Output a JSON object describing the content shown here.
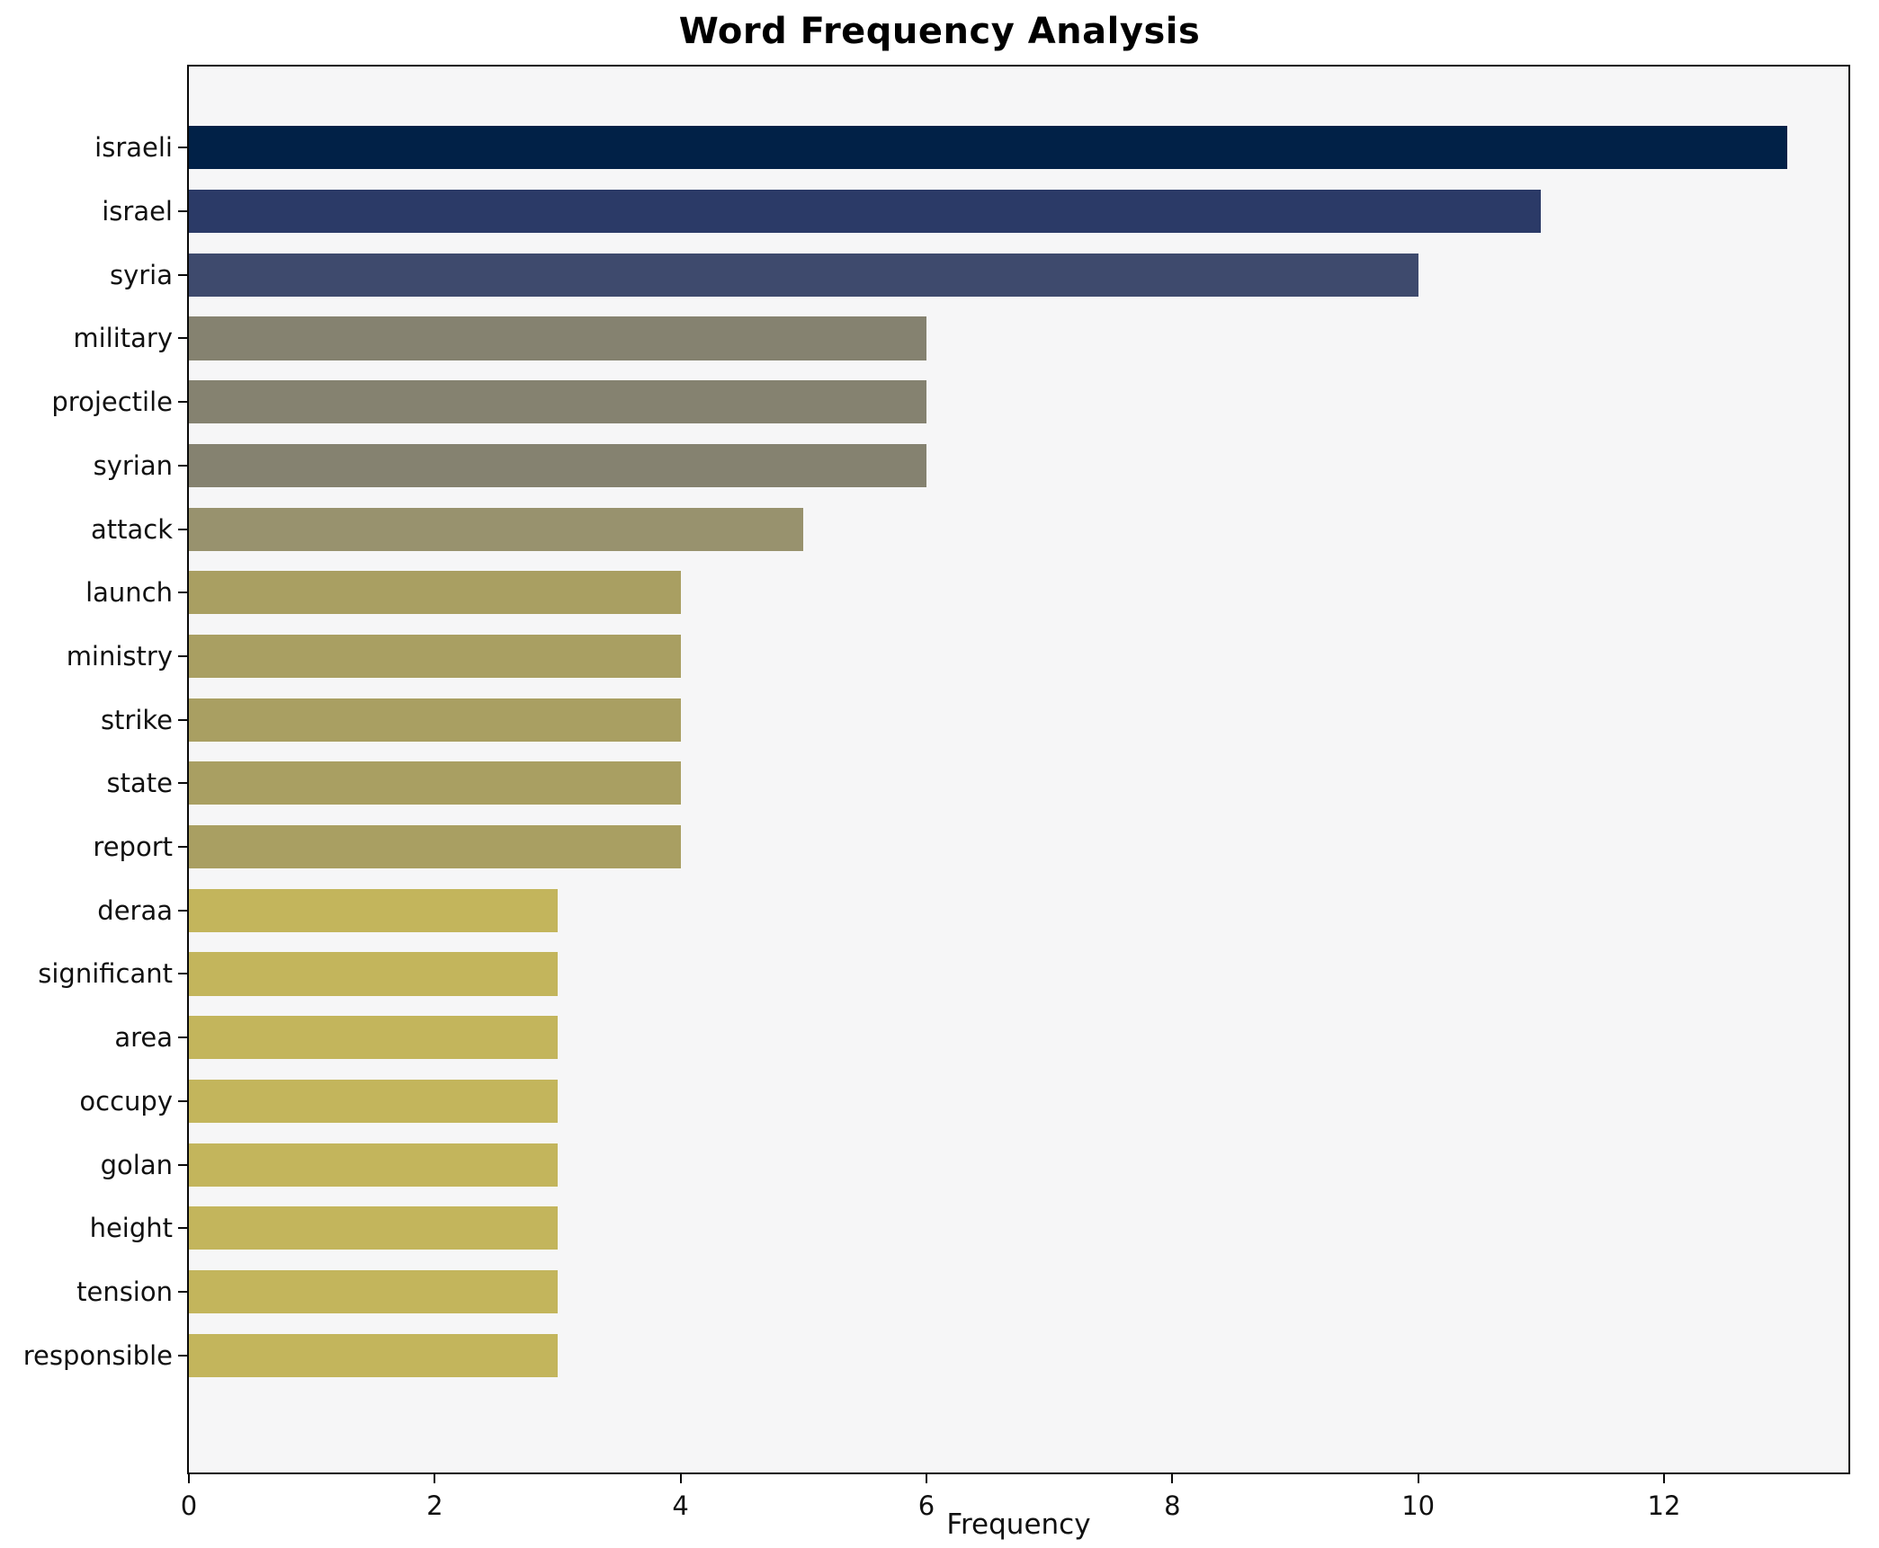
{
  "chart_data": {
    "type": "bar",
    "orientation": "horizontal",
    "title": "Word Frequency Analysis",
    "xlabel": "Frequency",
    "ylabel": "",
    "categories": [
      "israeli",
      "israel",
      "syria",
      "military",
      "projectile",
      "syrian",
      "attack",
      "launch",
      "ministry",
      "strike",
      "state",
      "report",
      "deraa",
      "significant",
      "area",
      "occupy",
      "golan",
      "height",
      "tension",
      "responsible"
    ],
    "values": [
      13,
      11,
      10,
      6,
      6,
      6,
      5,
      4,
      4,
      4,
      4,
      4,
      3,
      3,
      3,
      3,
      3,
      3,
      3,
      3
    ],
    "colors": [
      "#012147",
      "#2b3a67",
      "#3e4a6d",
      "#858270",
      "#858270",
      "#858270",
      "#98926e",
      "#a99f62",
      "#a99f62",
      "#a99f62",
      "#a99f62",
      "#a99f62",
      "#c3b55c",
      "#c3b55c",
      "#c3b55c",
      "#c3b55c",
      "#c3b55c",
      "#c3b55c",
      "#c3b55c",
      "#c3b55c"
    ],
    "xlim": [
      0,
      13.5
    ],
    "xticks": [
      0,
      2,
      4,
      6,
      8,
      10,
      12
    ],
    "grid": false,
    "legend": false,
    "plot_background": "#f6f6f7",
    "figure_background": "#ffffff"
  }
}
